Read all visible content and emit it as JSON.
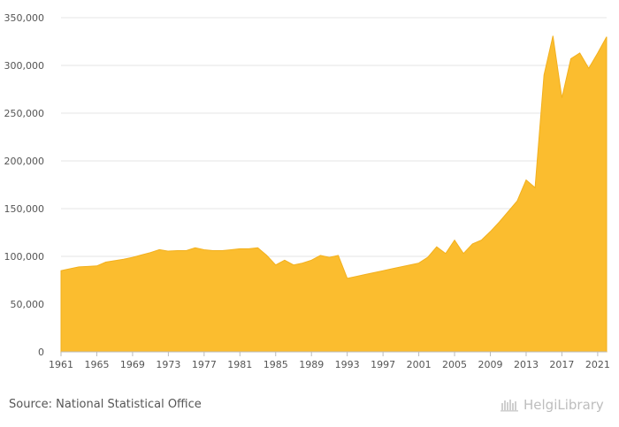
{
  "chart_data": {
    "type": "area",
    "x": [
      1961,
      1962,
      1963,
      1964,
      1965,
      1966,
      1967,
      1968,
      1969,
      1970,
      1971,
      1972,
      1973,
      1974,
      1975,
      1976,
      1977,
      1978,
      1979,
      1980,
      1981,
      1982,
      1983,
      1984,
      1985,
      1986,
      1987,
      1988,
      1989,
      1990,
      1991,
      1992,
      1993,
      1994,
      1995,
      1996,
      1997,
      1998,
      1999,
      2000,
      2001,
      2002,
      2003,
      2004,
      2005,
      2006,
      2007,
      2008,
      2009,
      2010,
      2011,
      2012,
      2013,
      2014,
      2015,
      2016,
      2017,
      2018,
      2019,
      2020,
      2021,
      2022
    ],
    "series": [
      {
        "values": [
          85000,
          87000,
          89000,
          89500,
          90000,
          94000,
          95500,
          97000,
          99000,
          101500,
          104000,
          107000,
          105500,
          106000,
          106000,
          109000,
          107000,
          106000,
          106000,
          107000,
          108000,
          108000,
          109000,
          101000,
          91000,
          96000,
          91000,
          93000,
          96000,
          101000,
          99000,
          101000,
          77000,
          79000,
          81000,
          83000,
          85000,
          87000,
          89000,
          91000,
          93000,
          99000,
          110000,
          103000,
          117000,
          103000,
          113000,
          117000,
          126000,
          136000,
          147000,
          158000,
          180000,
          172000,
          290000,
          331000,
          266000,
          307000,
          313000,
          297000,
          313000,
          330000
        ]
      }
    ],
    "x_tick_labels": [
      "1961",
      "1965",
      "1969",
      "1973",
      "1977",
      "1981",
      "1985",
      "1989",
      "1993",
      "1997",
      "2001",
      "2005",
      "2009",
      "2013",
      "2017",
      "2021"
    ],
    "y_tick_labels": [
      "0",
      "50,000",
      "100,000",
      "150,000",
      "200,000",
      "250,000",
      "300,000",
      "350,000"
    ],
    "ylim": [
      0,
      350000
    ],
    "xlim": [
      1961,
      2022
    ],
    "grid": "horizontal",
    "title": "",
    "xlabel": "",
    "ylabel": "",
    "fill_color": "#fbbd2f",
    "stroke_color": "#f2b01e"
  },
  "footer": {
    "source": "Source: National Statistical Office",
    "brand": "HelgiLibrary",
    "brand_icon": "helgi-logo-icon"
  }
}
